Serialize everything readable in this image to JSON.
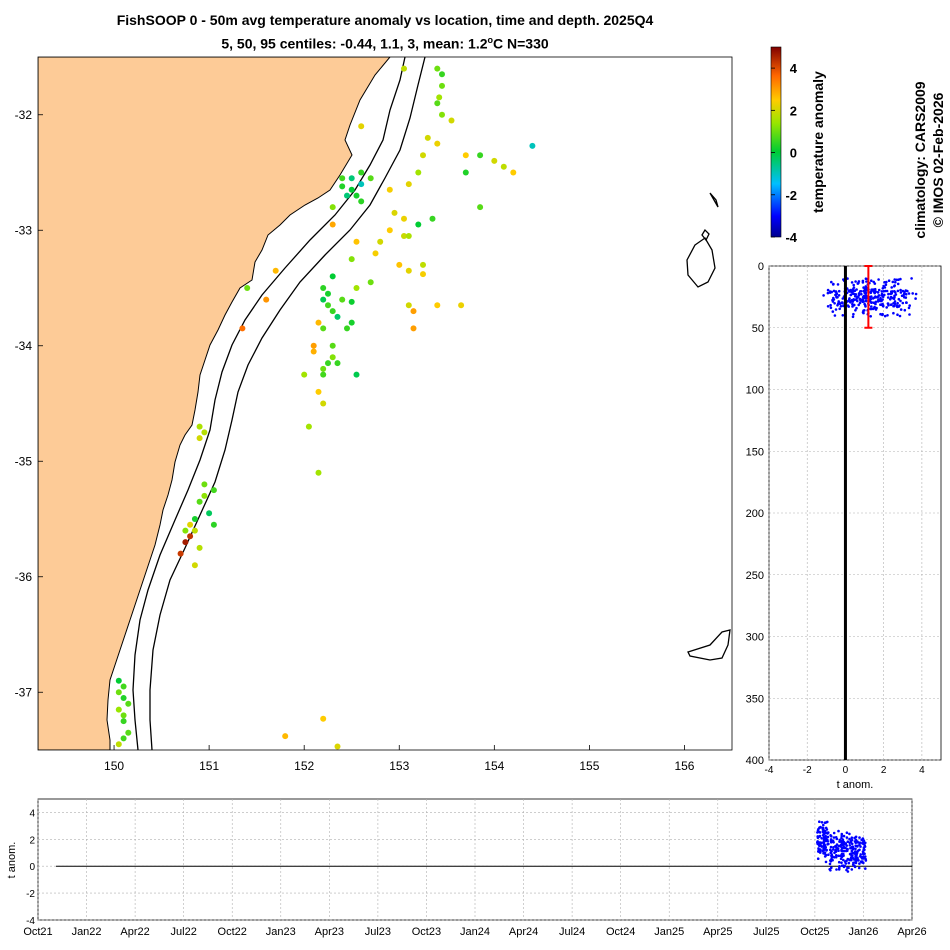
{
  "title": {
    "line1": "FishSOOP 0 - 50m avg temperature anomaly vs location, time and depth. 2025Q4",
    "line2_prefix": "5, 50, 95 centiles: -0.44, 1.1, 3, mean: 1.2",
    "line2_suffix": "C N=330",
    "degree_symbol": "o"
  },
  "side_text": {
    "climatology": "climatology: CARS2009",
    "credit": "© IMOS 02-Feb-2026"
  },
  "colors": {
    "land": "#fdcb97",
    "obs_blue": "#0000ff",
    "centile_bar": "#ff0000"
  },
  "chart_data": [
    {
      "type": "scatter",
      "name": "map",
      "title": "",
      "xlabel": "",
      "ylabel": "",
      "xlim": [
        149.2,
        156.5
      ],
      "ylim": [
        -37.5,
        -31.5
      ],
      "x_ticks": [
        "150",
        "151",
        "152",
        "153",
        "154",
        "155",
        "156"
      ],
      "y_ticks": [
        "-32",
        "-33",
        "-34",
        "-35",
        "-36",
        "-37"
      ],
      "points": [
        [
          153.05,
          -31.6,
          1.8
        ],
        [
          153.4,
          -31.6,
          1.0
        ],
        [
          153.45,
          -31.65,
          0.5
        ],
        [
          153.45,
          -31.75,
          1.0
        ],
        [
          153.42,
          -31.85,
          1.5
        ],
        [
          153.4,
          -31.9,
          0.8
        ],
        [
          153.45,
          -32.0,
          1.2
        ],
        [
          153.55,
          -32.05,
          2.0
        ],
        [
          152.6,
          -32.1,
          2.2
        ],
        [
          153.3,
          -32.2,
          2.0
        ],
        [
          153.4,
          -32.25,
          2.3
        ],
        [
          153.7,
          -32.35,
          2.5
        ],
        [
          153.85,
          -32.35,
          0.5
        ],
        [
          154.0,
          -32.4,
          2.0
        ],
        [
          154.1,
          -32.45,
          1.8
        ],
        [
          154.4,
          -32.27,
          -1.0
        ],
        [
          153.25,
          -32.35,
          2.0
        ],
        [
          153.2,
          -32.5,
          1.5
        ],
        [
          153.1,
          -32.6,
          2.2
        ],
        [
          152.6,
          -32.5,
          0.5
        ],
        [
          152.5,
          -32.55,
          -0.5
        ],
        [
          152.4,
          -32.62,
          0.3
        ],
        [
          152.5,
          -32.65,
          0.0
        ],
        [
          152.6,
          -32.6,
          -1.0
        ],
        [
          152.45,
          -32.7,
          -0.5
        ],
        [
          152.55,
          -32.7,
          0.2
        ],
        [
          152.7,
          -32.55,
          0.8
        ],
        [
          152.4,
          -32.55,
          0.6
        ],
        [
          153.7,
          -32.5,
          0.3
        ],
        [
          154.2,
          -32.5,
          2.5
        ],
        [
          153.85,
          -32.8,
          0.8
        ],
        [
          152.6,
          -32.75,
          0.4
        ],
        [
          152.9,
          -32.65,
          2.4
        ],
        [
          152.3,
          -32.8,
          1.2
        ],
        [
          152.95,
          -32.85,
          2.1
        ],
        [
          153.05,
          -32.9,
          2.3
        ],
        [
          153.35,
          -32.9,
          0.5
        ],
        [
          153.2,
          -32.95,
          0.0
        ],
        [
          152.9,
          -33.0,
          2.5
        ],
        [
          152.55,
          -33.1,
          2.6
        ],
        [
          153.05,
          -33.05,
          1.9
        ],
        [
          153.1,
          -33.05,
          1.6
        ],
        [
          152.8,
          -33.1,
          2.0
        ],
        [
          152.75,
          -33.2,
          2.4
        ],
        [
          152.5,
          -33.25,
          1.2
        ],
        [
          152.3,
          -33.4,
          0.0
        ],
        [
          153.0,
          -33.3,
          2.6
        ],
        [
          153.1,
          -33.35,
          2.2
        ],
        [
          153.25,
          -33.3,
          1.8
        ],
        [
          153.25,
          -33.38,
          2.4
        ],
        [
          152.7,
          -33.45,
          1.0
        ],
        [
          152.55,
          -33.5,
          1.5
        ],
        [
          152.2,
          -33.5,
          0.4
        ],
        [
          152.25,
          -33.55,
          0.2
        ],
        [
          152.2,
          -33.6,
          -0.2
        ],
        [
          152.25,
          -33.65,
          0.6
        ],
        [
          152.4,
          -33.6,
          0.8
        ],
        [
          152.5,
          -33.62,
          0.1
        ],
        [
          152.3,
          -33.7,
          0.5
        ],
        [
          152.35,
          -33.75,
          -0.4
        ],
        [
          152.15,
          -33.8,
          2.7
        ],
        [
          152.5,
          -33.8,
          0.2
        ],
        [
          152.45,
          -33.85,
          0.5
        ],
        [
          153.1,
          -33.65,
          2.0
        ],
        [
          153.4,
          -33.65,
          2.5
        ],
        [
          153.65,
          -33.65,
          2.3
        ],
        [
          153.15,
          -33.85,
          3.0
        ],
        [
          152.2,
          -33.85,
          0.8
        ],
        [
          152.1,
          -34.0,
          3.0
        ],
        [
          152.1,
          -34.05,
          2.8
        ],
        [
          152.3,
          -34.1,
          1.2
        ],
        [
          152.3,
          -34.0,
          0.8
        ],
        [
          152.25,
          -34.15,
          0.5
        ],
        [
          152.35,
          -34.15,
          0.5
        ],
        [
          152.2,
          -34.2,
          1.0
        ],
        [
          152.0,
          -34.25,
          1.5
        ],
        [
          152.2,
          -34.25,
          0.6
        ],
        [
          152.55,
          -34.25,
          -0.2
        ],
        [
          152.15,
          -34.4,
          2.5
        ],
        [
          152.2,
          -34.5,
          2.0
        ],
        [
          152.05,
          -34.7,
          1.5
        ],
        [
          150.95,
          -34.75,
          1.7
        ],
        [
          150.9,
          -34.8,
          2.0
        ],
        [
          150.9,
          -34.7,
          1.6
        ],
        [
          152.15,
          -35.1,
          1.5
        ],
        [
          150.95,
          -35.2,
          1.0
        ],
        [
          151.05,
          -35.25,
          0.6
        ],
        [
          150.95,
          -35.3,
          1.3
        ],
        [
          150.9,
          -35.35,
          0.8
        ],
        [
          150.85,
          -35.5,
          0.2
        ],
        [
          151.0,
          -35.45,
          -0.3
        ],
        [
          150.8,
          -35.55,
          2.2
        ],
        [
          150.85,
          -35.6,
          1.8
        ],
        [
          150.75,
          -35.6,
          1.2
        ],
        [
          150.8,
          -35.65,
          4.3
        ],
        [
          150.75,
          -35.7,
          4.6
        ],
        [
          150.7,
          -35.8,
          4.2
        ],
        [
          150.9,
          -35.75,
          1.7
        ],
        [
          150.85,
          -35.9,
          2.0
        ],
        [
          151.05,
          -35.55,
          0.4
        ],
        [
          150.05,
          -36.9,
          0.0
        ],
        [
          150.1,
          -36.95,
          0.6
        ],
        [
          150.05,
          -37.0,
          1.0
        ],
        [
          150.1,
          -37.05,
          0.3
        ],
        [
          150.15,
          -37.1,
          0.8
        ],
        [
          150.1,
          -37.2,
          1.0
        ],
        [
          150.1,
          -37.25,
          0.5
        ],
        [
          150.05,
          -37.15,
          1.4
        ],
        [
          150.15,
          -37.35,
          0.8
        ],
        [
          150.1,
          -37.4,
          0.6
        ],
        [
          150.05,
          -37.45,
          1.8
        ],
        [
          152.2,
          -37.23,
          2.5
        ],
        [
          151.8,
          -37.38,
          2.7
        ],
        [
          152.35,
          -37.47,
          2.1
        ],
        [
          151.7,
          -33.35,
          2.7
        ],
        [
          151.6,
          -33.6,
          3.1
        ],
        [
          151.35,
          -33.85,
          3.5
        ],
        [
          151.4,
          -33.5,
          1.0
        ],
        [
          152.3,
          -32.95,
          2.9
        ],
        [
          153.15,
          -33.7,
          3.0
        ]
      ]
    },
    {
      "type": "colorbar",
      "label": "temperature anomaly",
      "range": [
        -4,
        5
      ],
      "ticks": [
        "4",
        "2",
        "0",
        "-2",
        "-4"
      ]
    },
    {
      "type": "scatter",
      "name": "depth-profile",
      "xlabel": "t anom.",
      "ylabel": "",
      "xlim": [
        -4,
        5
      ],
      "ylim": [
        0,
        400
      ],
      "x_ticks": [
        "-4",
        "-2",
        "0",
        "2",
        "4"
      ],
      "y_ticks": [
        "0",
        "50",
        "100",
        "150",
        "200",
        "250",
        "300",
        "350",
        "400"
      ],
      "zero_line": 0,
      "centile_bar": {
        "x": 1.2,
        "y_from": 0,
        "y_to": 50
      }
    },
    {
      "type": "scatter",
      "name": "timeseries",
      "xlabel": "",
      "ylabel": "t anom.",
      "ylim": [
        -4,
        5
      ],
      "y_ticks": [
        "4",
        "2",
        "0",
        "-2",
        "-4"
      ],
      "x_ticks": [
        "Oct21",
        "Jan22",
        "Apr22",
        "Jul22",
        "Oct22",
        "Jan23",
        "Apr23",
        "Jul23",
        "Oct23",
        "Jan24",
        "Apr24",
        "Jul24",
        "Oct24",
        "Jan25",
        "Apr25",
        "Jul25",
        "Oct25",
        "Jan26",
        "Apr26"
      ],
      "zero_line": 0
    }
  ]
}
